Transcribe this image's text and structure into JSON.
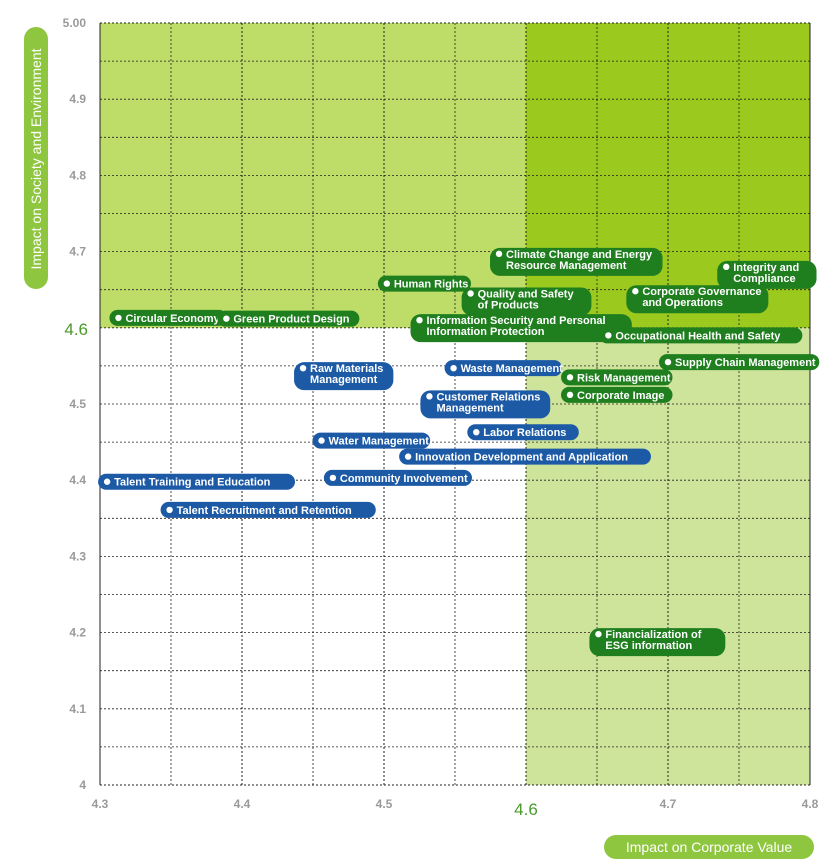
{
  "chart_data": {
    "type": "scatter",
    "title": "",
    "xlabel": "Impact on Corporate Value",
    "ylabel": "Impact on Society and Environment",
    "xlim": [
      4.3,
      4.8
    ],
    "ylim": [
      4.0,
      5.0
    ],
    "x_ticks": [
      "4.3",
      "4.4",
      "4.5",
      "4.6",
      "4.7",
      "4.8"
    ],
    "y_ticks": [
      "4",
      "4.1",
      "4.2",
      "4.3",
      "4.4",
      "4.5",
      "4.6",
      "4.7",
      "4.8",
      "4.9",
      "5.00"
    ],
    "x_threshold": 4.6,
    "y_threshold": 4.6,
    "grid": true,
    "colors": {
      "green_label": "#1f7f1f",
      "blue_label": "#1d5aa6",
      "zone_light": "#cfe49b",
      "zone_mid": "#bedd68",
      "zone_dark": "#9bc91d",
      "threshold_text": "#4a9a2a",
      "axis_pill": "#8fc63f"
    },
    "points": [
      {
        "lines": [
          "Climate Change and Energy",
          "Resource Management"
        ],
        "x": 4.581,
        "y": 4.697,
        "group": "green"
      },
      {
        "lines": [
          "Integrity and",
          "Compliance"
        ],
        "x": 4.741,
        "y": 4.68,
        "group": "green"
      },
      {
        "lines": [
          "Human Rights"
        ],
        "x": 4.502,
        "y": 4.658,
        "group": "green"
      },
      {
        "lines": [
          "Quality and Safety",
          "of Products"
        ],
        "x": 4.561,
        "y": 4.645,
        "group": "green"
      },
      {
        "lines": [
          "Corporate Governance",
          "and Operations"
        ],
        "x": 4.677,
        "y": 4.648,
        "group": "green"
      },
      {
        "lines": [
          "Circular Economy"
        ],
        "x": 4.313,
        "y": 4.613,
        "group": "green"
      },
      {
        "lines": [
          "Green Product Design"
        ],
        "x": 4.389,
        "y": 4.612,
        "group": "green"
      },
      {
        "lines": [
          "Information Security and Personal",
          "Information Protection"
        ],
        "x": 4.525,
        "y": 4.61,
        "group": "green"
      },
      {
        "lines": [
          "Occupational Health and Safety"
        ],
        "x": 4.658,
        "y": 4.59,
        "group": "green"
      },
      {
        "lines": [
          "Supply Chain Management"
        ],
        "x": 4.7,
        "y": 4.555,
        "group": "green"
      },
      {
        "lines": [
          "Risk Management"
        ],
        "x": 4.631,
        "y": 4.535,
        "group": "green"
      },
      {
        "lines": [
          "Corporate Image"
        ],
        "x": 4.631,
        "y": 4.512,
        "group": "green"
      },
      {
        "lines": [
          "Financialization of",
          "ESG information"
        ],
        "x": 4.651,
        "y": 4.198,
        "group": "green"
      },
      {
        "lines": [
          "Raw Materials",
          "Management"
        ],
        "x": 4.443,
        "y": 4.547,
        "group": "blue"
      },
      {
        "lines": [
          "Waste Management"
        ],
        "x": 4.549,
        "y": 4.547,
        "group": "blue"
      },
      {
        "lines": [
          "Customer Relations",
          "Management"
        ],
        "x": 4.532,
        "y": 4.51,
        "group": "blue"
      },
      {
        "lines": [
          "Labor Relations"
        ],
        "x": 4.565,
        "y": 4.463,
        "group": "blue"
      },
      {
        "lines": [
          "Water Management"
        ],
        "x": 4.456,
        "y": 4.452,
        "group": "blue"
      },
      {
        "lines": [
          "Innovation Development and Application"
        ],
        "x": 4.517,
        "y": 4.431,
        "group": "blue"
      },
      {
        "lines": [
          "Community Involvement"
        ],
        "x": 4.464,
        "y": 4.403,
        "group": "blue"
      },
      {
        "lines": [
          "Talent Training and Education"
        ],
        "x": 4.305,
        "y": 4.398,
        "group": "blue"
      },
      {
        "lines": [
          "Talent Recruitment and Retention"
        ],
        "x": 4.349,
        "y": 4.361,
        "group": "blue"
      }
    ]
  }
}
